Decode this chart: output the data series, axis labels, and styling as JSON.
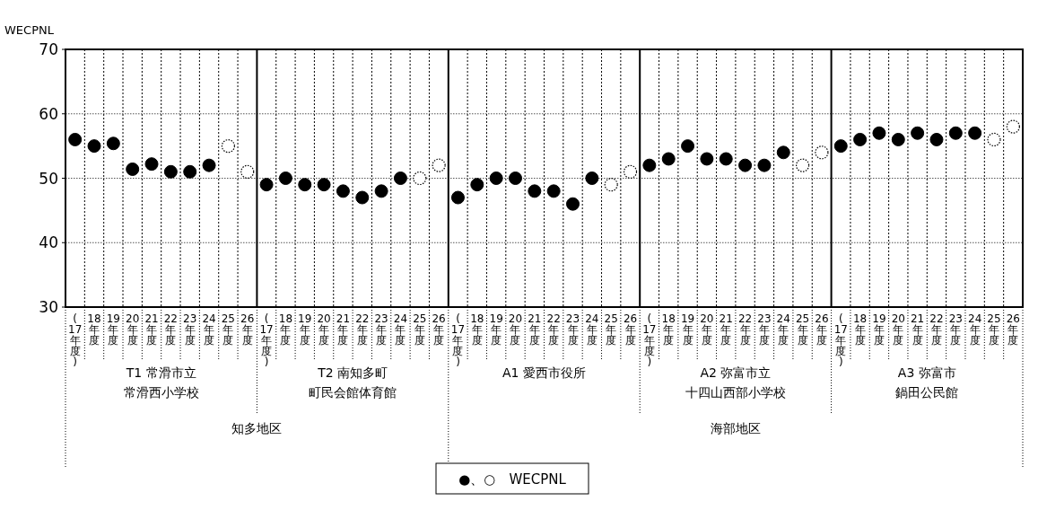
{
  "chart_data": {
    "type": "scatter",
    "ylabel": "WECPNL",
    "categories": [
      "(17年度)",
      "18年度",
      "19年度",
      "20年度",
      "21年度",
      "22年度",
      "23年度",
      "24年度",
      "25年度",
      "26年度",
      "(17年度)",
      "18年度",
      "19年度",
      "20年度",
      "21年度",
      "22年度",
      "23年度",
      "24年度",
      "25年度",
      "26年度",
      "(17年度)",
      "18年度",
      "19年度",
      "20年度",
      "21年度",
      "22年度",
      "23年度",
      "24年度",
      "25年度",
      "26年度",
      "(17年度)",
      "18年度",
      "19年度",
      "20年度",
      "21年度",
      "22年度",
      "23年度",
      "24年度",
      "25年度",
      "26年度",
      "(17年度)",
      "18年度",
      "19年度",
      "20年度",
      "21年度",
      "22年度",
      "23年度",
      "24年度",
      "25年度",
      "26年度"
    ],
    "series": [
      {
        "color": "#000000",
        "marker": "circle",
        "line_style": "solid",
        "values": [
          56,
          55,
          55.4,
          51.4,
          52.2,
          51,
          51,
          52,
          null,
          null,
          49,
          50,
          49,
          49,
          48,
          47,
          48,
          50,
          null,
          null,
          47,
          49,
          50,
          50,
          48,
          48,
          46,
          50,
          null,
          null,
          52,
          53,
          55,
          53,
          53,
          52,
          52,
          54,
          null,
          null,
          55,
          56,
          57,
          56,
          57,
          56,
          57,
          57,
          null,
          null
        ]
      },
      {
        "color": "#000000",
        "marker": "circle",
        "line_style": "dotted",
        "values": [
          null,
          null,
          null,
          null,
          null,
          null,
          null,
          null,
          55,
          51,
          null,
          null,
          null,
          null,
          null,
          null,
          null,
          null,
          50,
          52,
          null,
          null,
          null,
          null,
          null,
          null,
          null,
          null,
          49,
          51,
          null,
          null,
          null,
          null,
          null,
          null,
          null,
          null,
          52,
          54,
          null,
          null,
          null,
          null,
          null,
          null,
          null,
          null,
          56,
          58
        ]
      }
    ],
    "ylim": [
      30,
      70
    ],
    "yticks": [
      30,
      40,
      50,
      60,
      70
    ],
    "grid": true,
    "annotations": [
      "T1 常滑市立",
      "常滑西小学校",
      "T2 南知多町",
      "町民会館体育館",
      "A1 愛西市役所",
      "A2 弥富市立",
      "十四山西部小学校",
      "A3 弥富市",
      "鍋田公民館",
      "知多地区",
      "海部地区",
      "●、○　WECPNL"
    ]
  }
}
